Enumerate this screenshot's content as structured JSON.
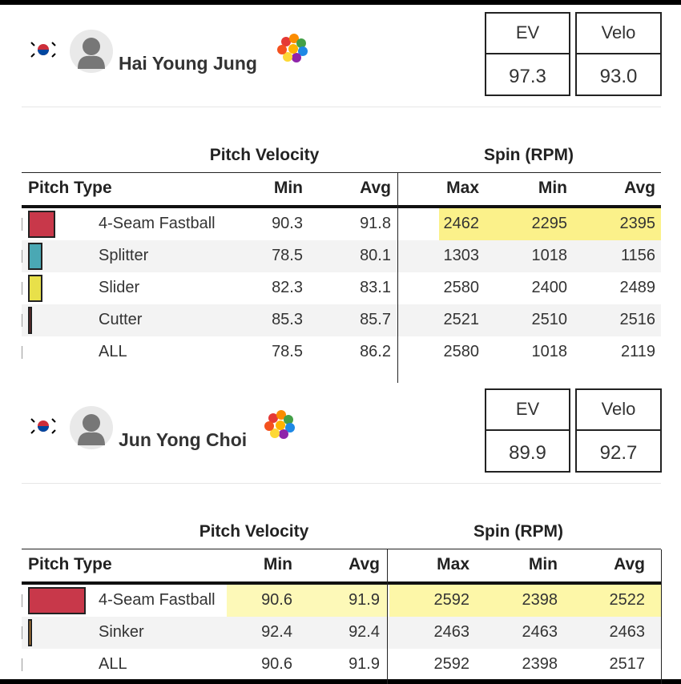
{
  "players": [
    {
      "name": "Hai Young Jung",
      "stats": [
        {
          "label": "EV",
          "value": "97.3"
        },
        {
          "label": "Velo",
          "value": "93.0"
        }
      ],
      "table": {
        "groups": [
          "Pitch Velocity",
          "Spin (RPM)"
        ],
        "columns": [
          "Pitch Type",
          "Min",
          "Avg",
          "Max",
          "Min",
          "Avg"
        ],
        "rows": [
          {
            "pitch": "4-Seam Fastball",
            "color": "#c8384a",
            "usage": 42,
            "values": [
              "90.3",
              "91.8",
              "2462",
              "2295",
              "2395"
            ],
            "highlight": {
              "spin": "#fbf18a"
            }
          },
          {
            "pitch": "Splitter",
            "color": "#4aa8b4",
            "usage": 22,
            "values": [
              "78.5",
              "80.1",
              "1303",
              "1018",
              "1156"
            ]
          },
          {
            "pitch": "Slider",
            "color": "#e8e04a",
            "usage": 22,
            "values": [
              "82.3",
              "83.1",
              "2580",
              "2400",
              "2489"
            ]
          },
          {
            "pitch": "Cutter",
            "color": "#7a2a2a",
            "usage": 6,
            "values": [
              "85.3",
              "85.7",
              "2521",
              "2510",
              "2516"
            ]
          },
          {
            "pitch": "ALL",
            "values": [
              "78.5",
              "86.2",
              "2580",
              "1018",
              "2119"
            ]
          }
        ]
      }
    },
    {
      "name": "Jun Yong Choi",
      "stats": [
        {
          "label": "EV",
          "value": "89.9"
        },
        {
          "label": "Velo",
          "value": "92.7"
        }
      ],
      "table": {
        "groups": [
          "Pitch Velocity",
          "Spin (RPM)"
        ],
        "columns": [
          "Pitch Type",
          "Min",
          "Avg",
          "Max",
          "Min",
          "Avg"
        ],
        "rows": [
          {
            "pitch": "4-Seam Fastball",
            "color": "#c8384a",
            "usage": 90,
            "values": [
              "90.6",
              "91.9",
              "2592",
              "2398",
              "2522"
            ],
            "highlight": {
              "velocity": "#fdf9b8",
              "spin": "#fdf7a8"
            }
          },
          {
            "pitch": "Sinker",
            "color": "#e89a3a",
            "usage": 6,
            "values": [
              "92.4",
              "92.4",
              "2463",
              "2463",
              "2463"
            ]
          },
          {
            "pitch": "ALL",
            "values": [
              "90.6",
              "91.9",
              "2592",
              "2398",
              "2517"
            ]
          }
        ]
      }
    }
  ]
}
